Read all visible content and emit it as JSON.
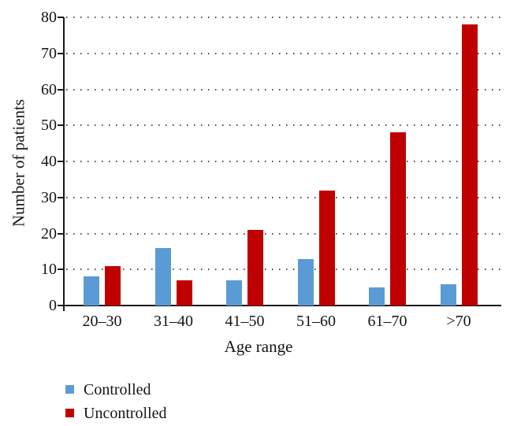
{
  "figure": {
    "background": "#ffffff",
    "text_color": "#151515",
    "gridline_color": "#4d4d4d"
  },
  "chart_data": {
    "type": "bar",
    "categories": [
      "20–30",
      "31–40",
      "41–50",
      "51–60",
      "61–70",
      ">70"
    ],
    "series": [
      {
        "name": "Controlled",
        "color": "#5B9BD5",
        "values": [
          8,
          16,
          7,
          13,
          5,
          6
        ]
      },
      {
        "name": "Uncontrolled",
        "color": "#C00000",
        "values": [
          11,
          7,
          21,
          32,
          48,
          78
        ]
      }
    ],
    "title": "",
    "xlabel": "Age range",
    "ylabel": "Number of patients",
    "ylim": [
      0,
      80
    ],
    "ytick_step": 10,
    "yticks": [
      0,
      10,
      20,
      30,
      40,
      50,
      60,
      70,
      80
    ],
    "grid": "dotted-horizontal",
    "legend_position": "bottom-left"
  }
}
